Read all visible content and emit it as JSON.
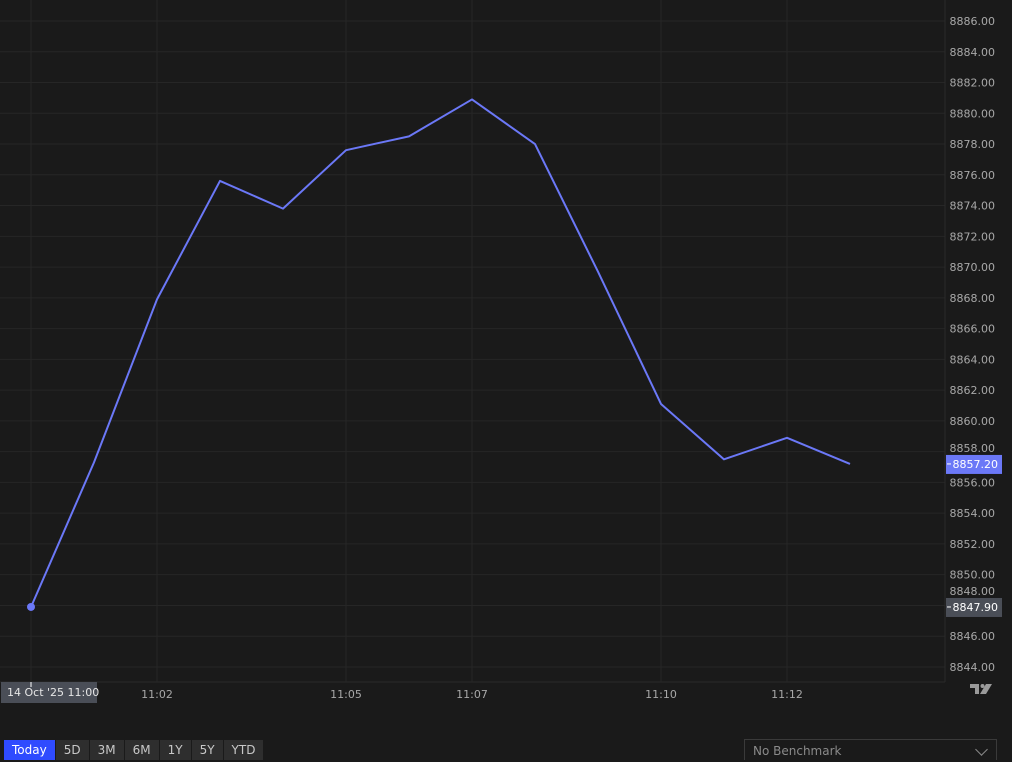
{
  "chart_data": {
    "type": "line",
    "x": [
      "11:00",
      "11:01",
      "11:02",
      "11:03",
      "11:04",
      "11:05",
      "11:06",
      "11:07",
      "11:08",
      "11:09",
      "11:10",
      "11:11",
      "11:12",
      "11:13"
    ],
    "series": [
      {
        "values": [
          8847.9,
          8857.3,
          8867.9,
          8875.6,
          8873.8,
          8877.6,
          8878.5,
          8880.9,
          8878.0,
          8869.7,
          8861.1,
          8857.5,
          8858.9,
          8857.2
        ]
      }
    ],
    "ylim": [
      8843,
      8887
    ],
    "y_ticks": [
      "8844.00",
      "8846.00",
      "8848.00",
      "8850.00",
      "8852.00",
      "8854.00",
      "8856.00",
      "8858.00",
      "8860.00",
      "8862.00",
      "8864.00",
      "8866.00",
      "8868.00",
      "8870.00",
      "8872.00",
      "8874.00",
      "8876.00",
      "8878.00",
      "8880.00",
      "8882.00",
      "8884.00",
      "8886.00"
    ],
    "x_ticks": [
      "11:02",
      "11:05",
      "11:07",
      "11:10",
      "11:12"
    ],
    "start_label": "14 Oct '25   11:00",
    "last_price_label": "8857.20",
    "start_price_label": "8847.90",
    "grid": true,
    "y_axis_position": "right",
    "line_color": "#6b78f7",
    "logo": "TV"
  },
  "range_buttons": [
    "Today",
    "5D",
    "3M",
    "6M",
    "1Y",
    "5Y",
    "YTD"
  ],
  "active_range": "Today",
  "benchmark": {
    "label": "No Benchmark",
    "icon": "chevron-down-icon"
  }
}
